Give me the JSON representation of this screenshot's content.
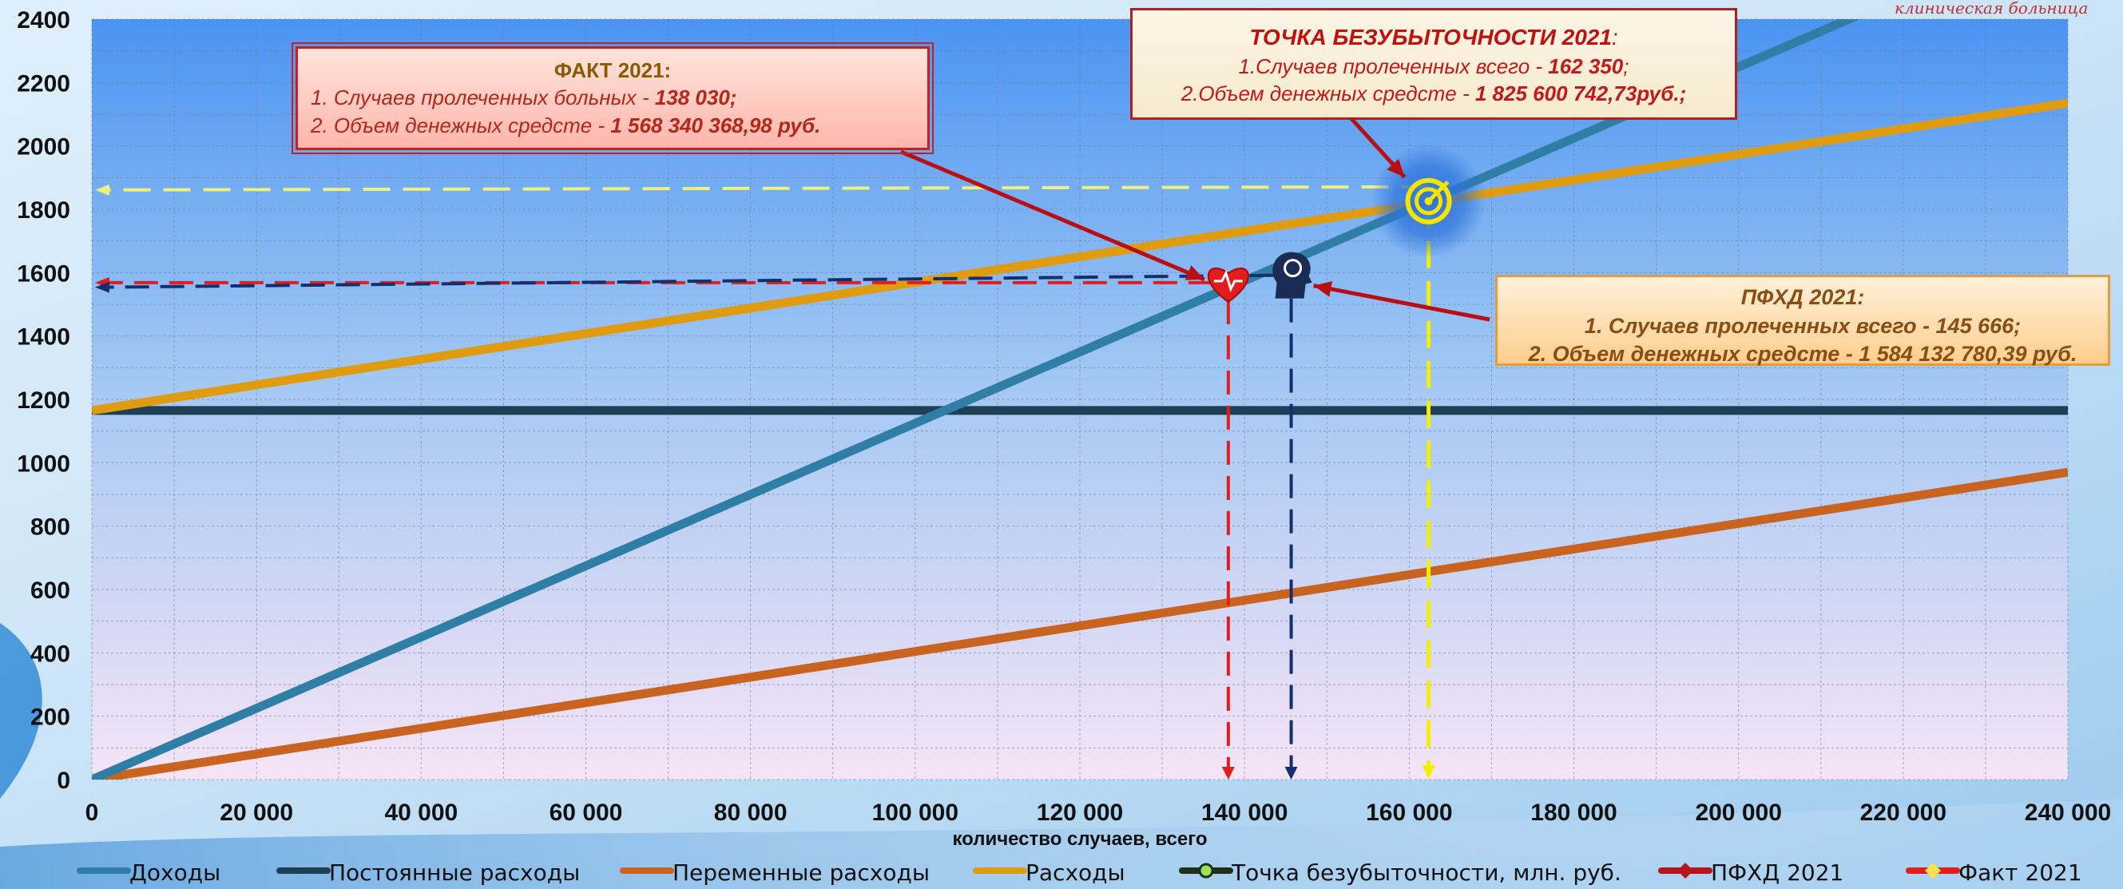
{
  "chart_data": {
    "type": "line",
    "xlabel": "количество случаев, всего",
    "ylabel": "",
    "xlim": [
      0,
      240000
    ],
    "ylim": [
      0,
      2400
    ],
    "x_ticks": [
      "0",
      "20 000",
      "40 000",
      "60 000",
      "80 000",
      "100 000",
      "120 000",
      "140 000",
      "160 000",
      "180 000",
      "200 000",
      "220 000",
      "240 000"
    ],
    "y_ticks": [
      "0",
      "200",
      "400",
      "600",
      "800",
      "1000",
      "1200",
      "1400",
      "1600",
      "1800",
      "2000",
      "2200",
      "2400"
    ],
    "grid": true,
    "legend_position": "bottom",
    "series": [
      {
        "name": "Доходы",
        "color": "#2e7ea6",
        "x": [
          0,
          240000
        ],
        "y": [
          0,
          2699
        ]
      },
      {
        "name": "Постоянные расходы",
        "color": "#1f3f56",
        "x": [
          0,
          240000
        ],
        "y": [
          1165,
          1165
        ]
      },
      {
        "name": "Переменные расходы",
        "color": "#c8641f",
        "x": [
          0,
          240000
        ],
        "y": [
          0,
          970
        ]
      },
      {
        "name": "Расходы",
        "color": "#e09c10",
        "x": [
          0,
          240000
        ],
        "y": [
          1165,
          2135
        ]
      }
    ],
    "markers": [
      {
        "name": "Точка безубыточности, млн. руб.",
        "color": "#f5e400",
        "x": 162350,
        "y": 1825.6,
        "icon": "target-icon"
      },
      {
        "name": "ПФХД 2021",
        "color": "#1a2b55",
        "x": 145666,
        "y": 1584.1,
        "icon": "head-icon"
      },
      {
        "name": "Факт 2021",
        "color": "#e31c1c",
        "x": 138030,
        "y": 1568.3,
        "icon": "heart-icon"
      }
    ]
  },
  "callouts": {
    "fact": {
      "title": "ФАКТ 2021:",
      "line1": "1. Случаев пролеченных больных - ",
      "line1_value": "138 030;",
      "line2": "2. Объем денежных средсте - ",
      "line2_value": "1 568 340 368,98 руб."
    },
    "breakeven": {
      "title": "ТОЧКА БЕЗУБЫТОЧНОСТИ 2021",
      "title_suffix": ":",
      "line1": "1.Случаев пролеченных всего - ",
      "line1_value": "162 350",
      "line1_suffix": ";",
      "line2": "2.Объем денежных средсте - ",
      "line2_value": "1 825 600 742,73руб.;"
    },
    "plan": {
      "title": "ПФХД 2021:",
      "line1": "1. Случаев пролеченных всего - 145 666;",
      "line2": "2. Объем денежных средсте - 1 584 132 780,39 руб."
    }
  },
  "header": {
    "hospital_caption": "клиническая больница"
  }
}
